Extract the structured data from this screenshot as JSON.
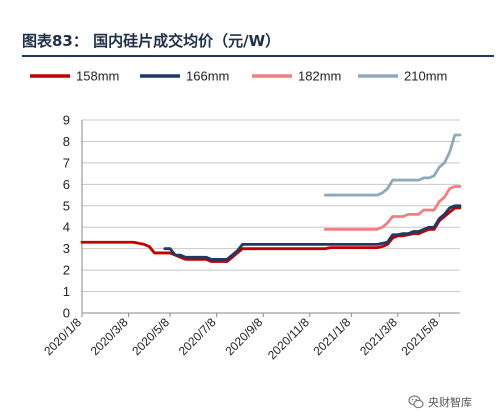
{
  "header": {
    "title": "图表83：   国内硅片成交均价（元/W）"
  },
  "watermark": {
    "text": "央财智库",
    "icon": "wechat-logo-icon"
  },
  "chart_data": {
    "type": "line",
    "title": "",
    "xlabel": "",
    "ylabel": "",
    "ylim": [
      0,
      9
    ],
    "yticks": [
      0,
      1,
      2,
      3,
      4,
      5,
      6,
      7,
      8,
      9
    ],
    "grid": "horizontal",
    "legend_position": "top",
    "x_tick_labels": [
      "2020/1/8",
      "2020/3/8",
      "2020/5/8",
      "2020/7/8",
      "2020/9/8",
      "2020/11/8",
      "2021/1/8",
      "2021/3/8",
      "2021/5/8"
    ],
    "x": [
      "2020/1/8",
      "2020/1/15",
      "2020/1/22",
      "2020/1/29",
      "2020/2/5",
      "2020/2/12",
      "2020/2/19",
      "2020/2/26",
      "2020/3/4",
      "2020/3/11",
      "2020/3/18",
      "2020/3/25",
      "2020/4/1",
      "2020/4/8",
      "2020/4/15",
      "2020/4/22",
      "2020/4/29",
      "2020/5/6",
      "2020/5/13",
      "2020/5/20",
      "2020/5/27",
      "2020/6/3",
      "2020/6/10",
      "2020/6/17",
      "2020/6/24",
      "2020/7/1",
      "2020/7/8",
      "2020/7/15",
      "2020/7/22",
      "2020/7/29",
      "2020/8/5",
      "2020/8/12",
      "2020/8/19",
      "2020/8/26",
      "2020/9/2",
      "2020/9/9",
      "2020/9/16",
      "2020/9/23",
      "2020/9/30",
      "2020/10/7",
      "2020/10/14",
      "2020/10/21",
      "2020/10/28",
      "2020/11/4",
      "2020/11/11",
      "2020/11/18",
      "2020/11/25",
      "2020/12/2",
      "2020/12/9",
      "2020/12/16",
      "2020/12/23",
      "2020/12/30",
      "2021/1/6",
      "2021/1/13",
      "2021/1/20",
      "2021/1/27",
      "2021/2/3",
      "2021/2/10",
      "2021/2/17",
      "2021/2/24",
      "2021/3/3",
      "2021/3/10",
      "2021/3/17",
      "2021/3/24",
      "2021/3/31",
      "2021/4/7",
      "2021/4/14",
      "2021/4/21",
      "2021/4/28",
      "2021/5/5",
      "2021/5/12",
      "2021/5/19",
      "2021/5/26",
      "2021/6/2"
    ],
    "series": [
      {
        "name": "158mm",
        "color": "#c00000",
        "values": [
          3.3,
          3.3,
          3.3,
          3.3,
          3.3,
          3.3,
          3.3,
          3.3,
          3.3,
          3.3,
          3.3,
          3.25,
          3.2,
          3.1,
          2.8,
          2.8,
          2.8,
          2.8,
          2.7,
          2.6,
          2.5,
          2.5,
          2.5,
          2.5,
          2.5,
          2.4,
          2.4,
          2.4,
          2.4,
          2.6,
          2.8,
          3.0,
          3.0,
          3.0,
          3.0,
          3.0,
          3.0,
          3.0,
          3.0,
          3.0,
          3.0,
          3.0,
          3.0,
          3.0,
          3.0,
          3.0,
          3.0,
          3.0,
          3.05,
          3.05,
          3.05,
          3.05,
          3.05,
          3.05,
          3.05,
          3.05,
          3.05,
          3.05,
          3.1,
          3.2,
          3.5,
          3.6,
          3.6,
          3.65,
          3.7,
          3.7,
          3.8,
          3.9,
          3.9,
          4.3,
          4.5,
          4.7,
          4.9,
          4.9
        ]
      },
      {
        "name": "166mm",
        "color": "#1f3864",
        "values": [
          null,
          null,
          null,
          null,
          null,
          null,
          null,
          null,
          null,
          null,
          null,
          null,
          null,
          null,
          null,
          null,
          3.0,
          3.0,
          2.7,
          2.7,
          2.6,
          2.6,
          2.6,
          2.6,
          2.6,
          2.5,
          2.5,
          2.5,
          2.5,
          2.7,
          2.9,
          3.2,
          3.2,
          3.2,
          3.2,
          3.2,
          3.2,
          3.2,
          3.2,
          3.2,
          3.2,
          3.2,
          3.2,
          3.2,
          3.2,
          3.2,
          3.2,
          3.2,
          3.2,
          3.2,
          3.2,
          3.2,
          3.2,
          3.2,
          3.2,
          3.2,
          3.2,
          3.2,
          3.25,
          3.3,
          3.65,
          3.65,
          3.7,
          3.7,
          3.8,
          3.8,
          3.9,
          4.0,
          4.0,
          4.4,
          4.6,
          4.9,
          5.0,
          5.0
        ]
      },
      {
        "name": "182mm",
        "color": "#f08080",
        "values": [
          null,
          null,
          null,
          null,
          null,
          null,
          null,
          null,
          null,
          null,
          null,
          null,
          null,
          null,
          null,
          null,
          null,
          null,
          null,
          null,
          null,
          null,
          null,
          null,
          null,
          null,
          null,
          null,
          null,
          null,
          null,
          null,
          null,
          null,
          null,
          null,
          null,
          null,
          null,
          null,
          null,
          null,
          null,
          null,
          null,
          null,
          null,
          3.9,
          3.9,
          3.9,
          3.9,
          3.9,
          3.9,
          3.9,
          3.9,
          3.9,
          3.9,
          3.9,
          4.0,
          4.2,
          4.5,
          4.5,
          4.5,
          4.6,
          4.6,
          4.6,
          4.8,
          4.8,
          4.8,
          5.2,
          5.4,
          5.8,
          5.9,
          5.9
        ]
      },
      {
        "name": "210mm",
        "color": "#8faabc",
        "values": [
          null,
          null,
          null,
          null,
          null,
          null,
          null,
          null,
          null,
          null,
          null,
          null,
          null,
          null,
          null,
          null,
          null,
          null,
          null,
          null,
          null,
          null,
          null,
          null,
          null,
          null,
          null,
          null,
          null,
          null,
          null,
          null,
          null,
          null,
          null,
          null,
          null,
          null,
          null,
          null,
          null,
          null,
          null,
          null,
          null,
          null,
          null,
          5.5,
          5.5,
          5.5,
          5.5,
          5.5,
          5.5,
          5.5,
          5.5,
          5.5,
          5.5,
          5.5,
          5.6,
          5.8,
          6.2,
          6.2,
          6.2,
          6.2,
          6.2,
          6.2,
          6.3,
          6.3,
          6.4,
          6.8,
          7.0,
          7.5,
          8.3,
          8.3
        ]
      }
    ]
  }
}
